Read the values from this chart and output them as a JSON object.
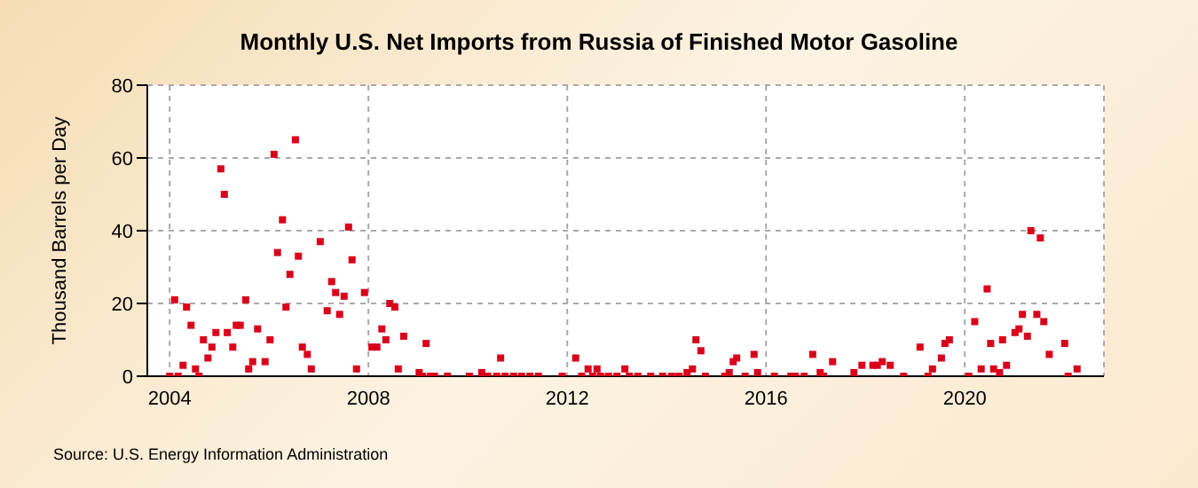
{
  "chart_data": {
    "type": "scatter",
    "title": "Monthly U.S. Net Imports from Russia of Finished Motor Gasoline",
    "ylabel": "Thousand Barrels per Day",
    "annotations": [
      "Source: U.S. Energy Information Administration"
    ],
    "x": [
      2004.0,
      2004.1,
      2004.17,
      2004.27,
      2004.34,
      2004.43,
      2004.52,
      2004.59,
      2004.68,
      2004.77,
      2004.85,
      2004.93,
      2005.03,
      2005.1,
      2005.16,
      2005.27,
      2005.34,
      2005.42,
      2005.53,
      2005.59,
      2005.67,
      2005.77,
      2005.92,
      2006.02,
      2006.1,
      2006.17,
      2006.27,
      2006.34,
      2006.42,
      2006.53,
      2006.59,
      2006.67,
      2006.77,
      2006.85,
      2007.03,
      2007.17,
      2007.26,
      2007.34,
      2007.42,
      2007.51,
      2007.6,
      2007.67,
      2007.76,
      2007.92,
      2008.07,
      2008.17,
      2008.27,
      2008.35,
      2008.43,
      2008.53,
      2008.6,
      2008.71,
      2009.02,
      2009.09,
      2009.16,
      2009.25,
      2009.33,
      2009.59,
      2010.03,
      2010.28,
      2010.4,
      2010.58,
      2010.66,
      2010.75,
      2010.92,
      2011.08,
      2011.25,
      2011.42,
      2011.9,
      2012.17,
      2012.29,
      2012.42,
      2012.51,
      2012.6,
      2012.67,
      2012.83,
      2013.0,
      2013.16,
      2013.25,
      2013.42,
      2013.68,
      2013.92,
      2014.1,
      2014.25,
      2014.41,
      2014.52,
      2014.59,
      2014.69,
      2014.78,
      2015.17,
      2015.26,
      2015.34,
      2015.41,
      2015.58,
      2015.76,
      2015.83,
      2016.17,
      2016.5,
      2016.59,
      2016.77,
      2016.94,
      2017.09,
      2017.16,
      2017.34,
      2017.77,
      2017.93,
      2018.15,
      2018.24,
      2018.34,
      2018.5,
      2018.77,
      2019.1,
      2019.26,
      2019.35,
      2019.53,
      2019.6,
      2019.69,
      2020.08,
      2020.2,
      2020.33,
      2020.45,
      2020.52,
      2020.58,
      2020.7,
      2020.76,
      2020.84,
      2021.01,
      2021.09,
      2021.16,
      2021.26,
      2021.33,
      2021.45,
      2021.52,
      2021.59,
      2021.7,
      2022.01,
      2022.08,
      2022.26
    ],
    "series": [
      {
        "color": "#d9001b",
        "values": [
          0,
          21,
          0,
          3,
          19,
          14,
          2,
          0,
          10,
          5,
          8,
          12,
          57,
          50,
          12,
          8,
          14,
          14,
          21,
          2,
          4,
          13,
          4,
          10,
          61,
          34,
          43,
          19,
          28,
          65,
          33,
          8,
          6,
          2,
          37,
          18,
          26,
          23,
          17,
          22,
          41,
          32,
          2,
          23,
          8,
          8,
          13,
          10,
          20,
          19,
          2,
          11,
          1,
          0,
          9,
          0,
          0,
          0,
          0,
          1,
          0,
          0,
          5,
          0,
          0,
          0,
          0,
          0,
          0,
          5,
          0,
          2,
          0,
          2,
          0,
          0,
          0,
          2,
          0,
          0,
          0,
          0,
          0,
          0,
          1,
          2,
          10,
          7,
          0,
          0,
          1,
          4,
          5,
          0,
          6,
          1,
          0,
          0,
          0,
          0,
          6,
          1,
          0,
          4,
          1,
          3,
          3,
          3,
          4,
          3,
          0,
          8,
          0,
          2,
          5,
          9,
          10,
          0,
          15,
          2,
          24,
          9,
          2,
          1,
          10,
          3,
          12,
          13,
          17,
          11,
          40,
          17,
          38,
          15,
          6,
          9,
          0,
          2
        ]
      }
    ],
    "xlim": [
      2003.55,
      2022.8
    ],
    "xticks": [
      2004,
      2008,
      2012,
      2016,
      2020
    ],
    "ylim": [
      0,
      80
    ],
    "yticks": [
      0,
      20,
      40,
      60,
      80
    ],
    "grid": true,
    "marker": "square",
    "legend": false
  }
}
